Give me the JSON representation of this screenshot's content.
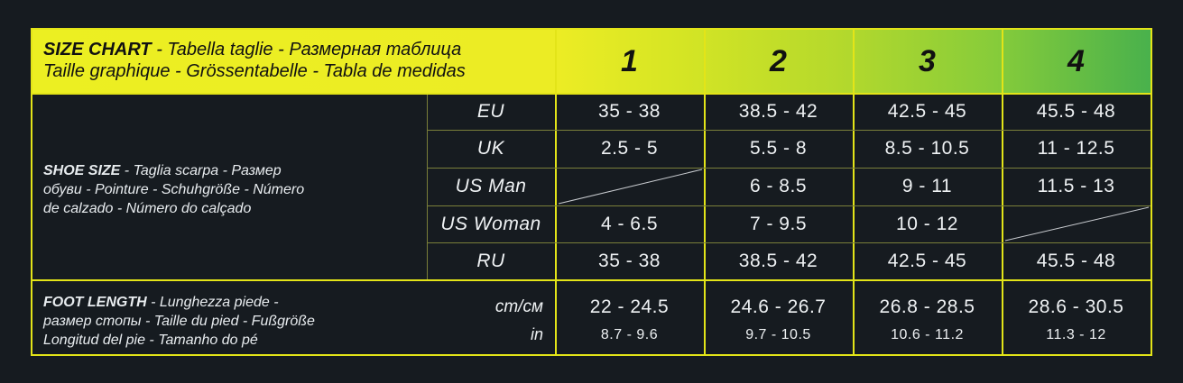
{
  "header": {
    "title_bold": "SIZE CHART",
    "title_rest_1": " - Tabella taglie - Размерная таблица",
    "title_line_2": "Taille graphique - Grössentabelle - Tabla de medidas",
    "sizes": [
      "1",
      "2",
      "3",
      "4"
    ]
  },
  "shoe_size": {
    "label_bold": "SHOE SIZE",
    "label_rest_1": " - Taglia scarpa - Размер",
    "label_line_2": "обуви - Pointure - Schuhgröße - Número",
    "label_line_3": "de calzado - Número do calçado",
    "rows": [
      {
        "name": "EU",
        "values": [
          "35 - 38",
          "38.5 - 42",
          "42.5 - 45",
          "45.5 - 48"
        ]
      },
      {
        "name": "UK",
        "values": [
          "2.5 - 5",
          "5.5 - 8",
          "8.5 - 10.5",
          "11 - 12.5"
        ]
      },
      {
        "name": "US Man",
        "values": [
          "",
          "6 - 8.5",
          "9 - 11",
          "11.5 - 13"
        ]
      },
      {
        "name": "US Woman",
        "values": [
          "4 - 6.5",
          "7 - 9.5",
          "10 - 12",
          ""
        ]
      },
      {
        "name": "RU",
        "values": [
          "35 - 38",
          "38.5 - 42",
          "42.5 - 45",
          "45.5 - 48"
        ]
      }
    ]
  },
  "foot_length": {
    "label_bold": "FOOT LENGTH",
    "label_rest_1": " - Lunghezza piede -",
    "label_line_2": "размер стопы - Taille du pied - Fußgröße",
    "label_line_3": "Longitud del pie - Tamanho do pé",
    "unit_cm": "cm/см",
    "unit_in": "in",
    "cm_values": [
      "22 - 24.5",
      "24.6 - 26.7",
      "26.8 - 28.5",
      "28.6 - 30.5"
    ],
    "in_values": [
      "8.7 - 9.6",
      "9.7 - 10.5",
      "10.6 - 11.2",
      "11.3 - 12"
    ]
  },
  "colors": {
    "background": "#161b20",
    "border": "#e3e418",
    "gradient_start": "#ecef22",
    "gradient_end": "#49b14c"
  }
}
